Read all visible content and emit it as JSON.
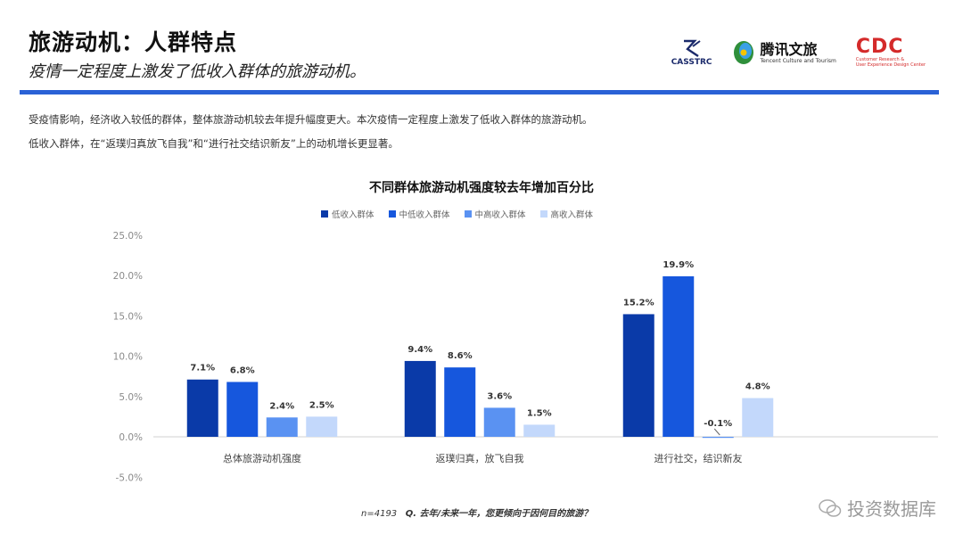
{
  "header": {
    "title": "旅游动机：人群特点",
    "subtitle": "疫情一定程度上激发了低收入群体的旅游动机。"
  },
  "logos": {
    "casstrc": "CASSTRC",
    "tencent_name": "腾讯文旅",
    "tencent_sub": "Tencent Culture and Tourism",
    "cdc": "CDC",
    "cdc_sub_1": "Customer Research &",
    "cdc_sub_2": "User Experience Design Center"
  },
  "paragraphs": [
    "受疫情影响，经济收入较低的群体，整体旅游动机较去年提升幅度更大。本次疫情一定程度上激发了低收入群体的旅游动机。",
    "低收入群体，在“返璞归真放飞自我”和“进行社交结识新友”上的动机增长更显著。"
  ],
  "footnote": {
    "n": "n=4193",
    "question": "Q. 去年/未来一年，您更倾向于因何目的旅游？"
  },
  "watermark": "投资数据库",
  "chart_data": {
    "type": "bar",
    "title": "不同群体旅游动机强度较去年增加百分比",
    "categories": [
      "总体旅游动机强度",
      "返璞归真，放飞自我",
      "进行社交，结识新友"
    ],
    "series": [
      {
        "name": "低收入群体",
        "color": "#0a3aa8",
        "values": [
          7.1,
          9.4,
          15.2
        ]
      },
      {
        "name": "中低收入群体",
        "color": "#1657dd",
        "values": [
          6.8,
          8.6,
          19.9
        ]
      },
      {
        "name": "中高收入群体",
        "color": "#5a92f2",
        "values": [
          2.4,
          3.6,
          -0.1
        ]
      },
      {
        "name": "高收入群体",
        "color": "#c3d8fb",
        "values": [
          2.5,
          1.5,
          4.8
        ]
      }
    ],
    "value_labels": [
      [
        "7.1%",
        "9.4%",
        "15.2%"
      ],
      [
        "6.8%",
        "8.6%",
        "19.9%"
      ],
      [
        "2.4%",
        "3.6%",
        "-0.1%"
      ],
      [
        "2.5%",
        "1.5%",
        "4.8%"
      ]
    ],
    "yticks": [
      "25.0%",
      "20.0%",
      "15.0%",
      "10.0%",
      "5.0%",
      "0.0%",
      "-5.0%"
    ],
    "ytick_values": [
      25,
      20,
      15,
      10,
      5,
      0,
      -5
    ],
    "ylim": [
      -5,
      25
    ],
    "legend_position": "top",
    "grid": false
  }
}
